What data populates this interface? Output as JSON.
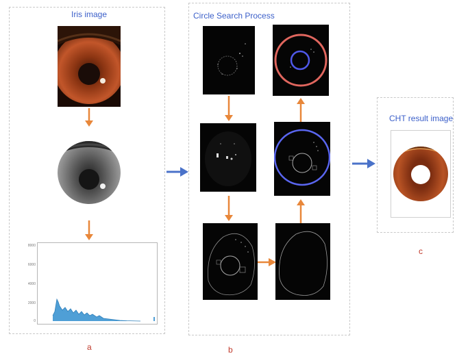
{
  "panel_a": {
    "title": "Iris image",
    "label": "a",
    "histogram": {
      "y_ticks": [
        "8000",
        "6000",
        "4000",
        "2000",
        "0"
      ],
      "ylim": [
        0,
        8000
      ]
    }
  },
  "panel_b": {
    "title": "Circle Search Process",
    "label": "b"
  },
  "panel_c": {
    "title": "CHT result image",
    "label": "c"
  },
  "colors": {
    "title_blue": "#3b5fc9",
    "label_red": "#c0392b",
    "arrow_orange": "#e8873a",
    "arrow_blue": "#4a72c9",
    "histogram_fill": "#4f9fd6"
  }
}
